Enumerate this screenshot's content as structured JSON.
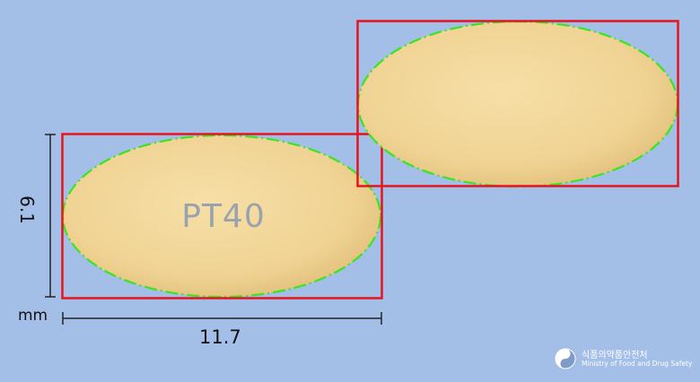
{
  "imprint": "PT40",
  "measurements": {
    "height": "6.1",
    "unit": "mm",
    "width": "11.7"
  },
  "colors": {
    "background": "#a3bfe8",
    "tablet": "#f1d699",
    "bounding_box": "#e8141c",
    "outline": "#39e61e",
    "imprint": "#9aa3ad"
  },
  "logo": {
    "icon": "government-emblem-icon",
    "korean": "식품의약품안전처",
    "english": "Ministry of Food and Drug Safety"
  }
}
